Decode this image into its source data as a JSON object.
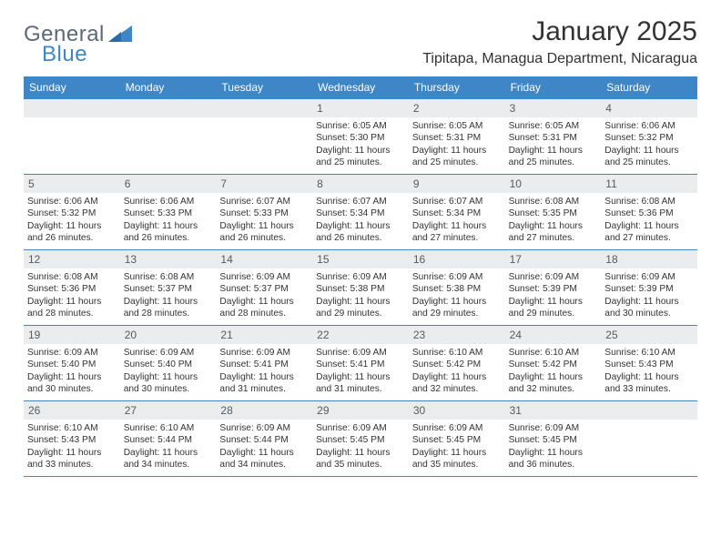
{
  "brand": {
    "general": "General",
    "blue": "Blue"
  },
  "title": "January 2025",
  "location": "Tipitapa, Managua Department, Nicaragua",
  "colors": {
    "header_bg": "#3E86C6",
    "daynum_bg": "#ebeced",
    "text": "#333333",
    "border": "#3E86C6",
    "page_bg": "#ffffff"
  },
  "weekdays": [
    "Sunday",
    "Monday",
    "Tuesday",
    "Wednesday",
    "Thursday",
    "Friday",
    "Saturday"
  ],
  "weeks": [
    [
      {
        "day": "",
        "sunrise": "",
        "sunset": "",
        "daylight": ""
      },
      {
        "day": "",
        "sunrise": "",
        "sunset": "",
        "daylight": ""
      },
      {
        "day": "",
        "sunrise": "",
        "sunset": "",
        "daylight": ""
      },
      {
        "day": "1",
        "sunrise": "Sunrise: 6:05 AM",
        "sunset": "Sunset: 5:30 PM",
        "daylight": "Daylight: 11 hours and 25 minutes."
      },
      {
        "day": "2",
        "sunrise": "Sunrise: 6:05 AM",
        "sunset": "Sunset: 5:31 PM",
        "daylight": "Daylight: 11 hours and 25 minutes."
      },
      {
        "day": "3",
        "sunrise": "Sunrise: 6:05 AM",
        "sunset": "Sunset: 5:31 PM",
        "daylight": "Daylight: 11 hours and 25 minutes."
      },
      {
        "day": "4",
        "sunrise": "Sunrise: 6:06 AM",
        "sunset": "Sunset: 5:32 PM",
        "daylight": "Daylight: 11 hours and 25 minutes."
      }
    ],
    [
      {
        "day": "5",
        "sunrise": "Sunrise: 6:06 AM",
        "sunset": "Sunset: 5:32 PM",
        "daylight": "Daylight: 11 hours and 26 minutes."
      },
      {
        "day": "6",
        "sunrise": "Sunrise: 6:06 AM",
        "sunset": "Sunset: 5:33 PM",
        "daylight": "Daylight: 11 hours and 26 minutes."
      },
      {
        "day": "7",
        "sunrise": "Sunrise: 6:07 AM",
        "sunset": "Sunset: 5:33 PM",
        "daylight": "Daylight: 11 hours and 26 minutes."
      },
      {
        "day": "8",
        "sunrise": "Sunrise: 6:07 AM",
        "sunset": "Sunset: 5:34 PM",
        "daylight": "Daylight: 11 hours and 26 minutes."
      },
      {
        "day": "9",
        "sunrise": "Sunrise: 6:07 AM",
        "sunset": "Sunset: 5:34 PM",
        "daylight": "Daylight: 11 hours and 27 minutes."
      },
      {
        "day": "10",
        "sunrise": "Sunrise: 6:08 AM",
        "sunset": "Sunset: 5:35 PM",
        "daylight": "Daylight: 11 hours and 27 minutes."
      },
      {
        "day": "11",
        "sunrise": "Sunrise: 6:08 AM",
        "sunset": "Sunset: 5:36 PM",
        "daylight": "Daylight: 11 hours and 27 minutes."
      }
    ],
    [
      {
        "day": "12",
        "sunrise": "Sunrise: 6:08 AM",
        "sunset": "Sunset: 5:36 PM",
        "daylight": "Daylight: 11 hours and 28 minutes."
      },
      {
        "day": "13",
        "sunrise": "Sunrise: 6:08 AM",
        "sunset": "Sunset: 5:37 PM",
        "daylight": "Daylight: 11 hours and 28 minutes."
      },
      {
        "day": "14",
        "sunrise": "Sunrise: 6:09 AM",
        "sunset": "Sunset: 5:37 PM",
        "daylight": "Daylight: 11 hours and 28 minutes."
      },
      {
        "day": "15",
        "sunrise": "Sunrise: 6:09 AM",
        "sunset": "Sunset: 5:38 PM",
        "daylight": "Daylight: 11 hours and 29 minutes."
      },
      {
        "day": "16",
        "sunrise": "Sunrise: 6:09 AM",
        "sunset": "Sunset: 5:38 PM",
        "daylight": "Daylight: 11 hours and 29 minutes."
      },
      {
        "day": "17",
        "sunrise": "Sunrise: 6:09 AM",
        "sunset": "Sunset: 5:39 PM",
        "daylight": "Daylight: 11 hours and 29 minutes."
      },
      {
        "day": "18",
        "sunrise": "Sunrise: 6:09 AM",
        "sunset": "Sunset: 5:39 PM",
        "daylight": "Daylight: 11 hours and 30 minutes."
      }
    ],
    [
      {
        "day": "19",
        "sunrise": "Sunrise: 6:09 AM",
        "sunset": "Sunset: 5:40 PM",
        "daylight": "Daylight: 11 hours and 30 minutes."
      },
      {
        "day": "20",
        "sunrise": "Sunrise: 6:09 AM",
        "sunset": "Sunset: 5:40 PM",
        "daylight": "Daylight: 11 hours and 30 minutes."
      },
      {
        "day": "21",
        "sunrise": "Sunrise: 6:09 AM",
        "sunset": "Sunset: 5:41 PM",
        "daylight": "Daylight: 11 hours and 31 minutes."
      },
      {
        "day": "22",
        "sunrise": "Sunrise: 6:09 AM",
        "sunset": "Sunset: 5:41 PM",
        "daylight": "Daylight: 11 hours and 31 minutes."
      },
      {
        "day": "23",
        "sunrise": "Sunrise: 6:10 AM",
        "sunset": "Sunset: 5:42 PM",
        "daylight": "Daylight: 11 hours and 32 minutes."
      },
      {
        "day": "24",
        "sunrise": "Sunrise: 6:10 AM",
        "sunset": "Sunset: 5:42 PM",
        "daylight": "Daylight: 11 hours and 32 minutes."
      },
      {
        "day": "25",
        "sunrise": "Sunrise: 6:10 AM",
        "sunset": "Sunset: 5:43 PM",
        "daylight": "Daylight: 11 hours and 33 minutes."
      }
    ],
    [
      {
        "day": "26",
        "sunrise": "Sunrise: 6:10 AM",
        "sunset": "Sunset: 5:43 PM",
        "daylight": "Daylight: 11 hours and 33 minutes."
      },
      {
        "day": "27",
        "sunrise": "Sunrise: 6:10 AM",
        "sunset": "Sunset: 5:44 PM",
        "daylight": "Daylight: 11 hours and 34 minutes."
      },
      {
        "day": "28",
        "sunrise": "Sunrise: 6:09 AM",
        "sunset": "Sunset: 5:44 PM",
        "daylight": "Daylight: 11 hours and 34 minutes."
      },
      {
        "day": "29",
        "sunrise": "Sunrise: 6:09 AM",
        "sunset": "Sunset: 5:45 PM",
        "daylight": "Daylight: 11 hours and 35 minutes."
      },
      {
        "day": "30",
        "sunrise": "Sunrise: 6:09 AM",
        "sunset": "Sunset: 5:45 PM",
        "daylight": "Daylight: 11 hours and 35 minutes."
      },
      {
        "day": "31",
        "sunrise": "Sunrise: 6:09 AM",
        "sunset": "Sunset: 5:45 PM",
        "daylight": "Daylight: 11 hours and 36 minutes."
      },
      {
        "day": "",
        "sunrise": "",
        "sunset": "",
        "daylight": ""
      }
    ]
  ]
}
